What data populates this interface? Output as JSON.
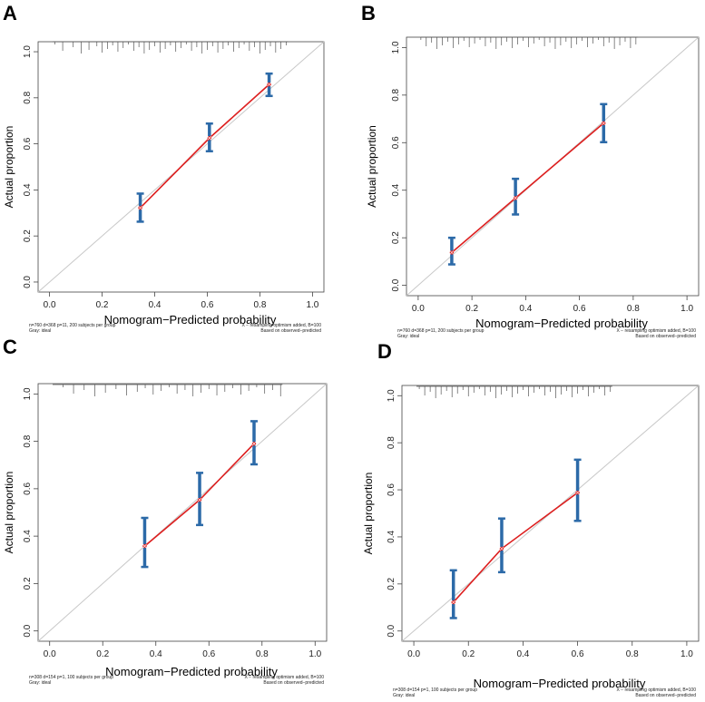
{
  "figure": {
    "colors": {
      "ideal": "#c8c8c8",
      "apparent": "#dd1f1f",
      "bias_corrected": "#dd1f1f",
      "errorbar": "#2c6aa8",
      "point": "#dd1f1f",
      "axis": "#444444",
      "text": "#222222",
      "rug": "#555555"
    }
  },
  "chart_data": [
    {
      "panel": "A",
      "type": "line",
      "title": "",
      "xlabel": "Nomogram−Predicted probability",
      "ylabel": "Actual proportion",
      "xlim": [
        0,
        1
      ],
      "ylim": [
        0,
        1
      ],
      "x_ticks": [
        "0.0",
        "0.2",
        "0.4",
        "0.6",
        "0.8",
        "1.0"
      ],
      "y_ticks": [
        "0.0",
        "0.2",
        "0.4",
        "0.6",
        "0.8",
        "1.0"
      ],
      "footnote_left": [
        "n=760 d=368 p=11, 200 subjects per group",
        "Gray: ideal"
      ],
      "footnote_right": [
        "X − resampling optimism added, B=100",
        "Based on observed−predicted"
      ],
      "series": [
        {
          "name": "ideal",
          "x": [
            0,
            1
          ],
          "y": [
            0,
            1
          ]
        },
        {
          "name": "calibration",
          "x": [
            0.345,
            0.608,
            0.835
          ],
          "y": [
            0.322,
            0.625,
            0.858
          ],
          "lower": [
            0.262,
            0.568,
            0.808
          ],
          "upper": [
            0.384,
            0.688,
            0.905
          ]
        }
      ],
      "rug": [
        0.02,
        0.05,
        0.09,
        0.12,
        0.15,
        0.18,
        0.2,
        0.22,
        0.24,
        0.26,
        0.28,
        0.3,
        0.32,
        0.34,
        0.36,
        0.38,
        0.4,
        0.42,
        0.44,
        0.46,
        0.48,
        0.5,
        0.52,
        0.54,
        0.56,
        0.58,
        0.6,
        0.62,
        0.64,
        0.66,
        0.68,
        0.7,
        0.72,
        0.74,
        0.76,
        0.78,
        0.8,
        0.82,
        0.84,
        0.86,
        0.88,
        0.9
      ]
    },
    {
      "panel": "B",
      "type": "line",
      "title": "",
      "xlabel": "Nomogram−Predicted probability",
      "ylabel": "Actual proportion",
      "xlim": [
        0,
        1
      ],
      "ylim": [
        0,
        1
      ],
      "x_ticks": [
        "0.0",
        "0.2",
        "0.4",
        "0.6",
        "0.8",
        "1.0"
      ],
      "y_ticks": [
        "0.0",
        "0.2",
        "0.4",
        "0.6",
        "0.8",
        "1.0"
      ],
      "footnote_left": [
        "n=760 d=368 p=11, 200 subjects per group",
        "Gray: ideal"
      ],
      "footnote_right": [
        "X − resampling optimism added, B=100",
        "Based on observed−predicted"
      ],
      "series": [
        {
          "name": "ideal",
          "x": [
            0,
            1
          ],
          "y": [
            0,
            1
          ]
        },
        {
          "name": "calibration",
          "x": [
            0.125,
            0.362,
            0.69
          ],
          "y": [
            0.138,
            0.367,
            0.682
          ],
          "lower": [
            0.088,
            0.298,
            0.602
          ],
          "upper": [
            0.2,
            0.448,
            0.762
          ]
        }
      ],
      "rug": [
        0.01,
        0.03,
        0.05,
        0.07,
        0.09,
        0.11,
        0.13,
        0.15,
        0.17,
        0.19,
        0.21,
        0.23,
        0.25,
        0.27,
        0.29,
        0.31,
        0.33,
        0.35,
        0.37,
        0.39,
        0.41,
        0.43,
        0.45,
        0.47,
        0.49,
        0.51,
        0.53,
        0.55,
        0.57,
        0.59,
        0.61,
        0.63,
        0.65,
        0.67,
        0.69,
        0.71,
        0.73,
        0.75,
        0.77,
        0.79,
        0.81
      ]
    },
    {
      "panel": "C",
      "type": "line",
      "title": "",
      "xlabel": "Nomogram−Predicted probability",
      "ylabel": "Actual proportion",
      "xlim": [
        0,
        1
      ],
      "ylim": [
        0,
        1
      ],
      "x_ticks": [
        "0.0",
        "0.2",
        "0.4",
        "0.6",
        "0.8",
        "1.0"
      ],
      "y_ticks": [
        "0.0",
        "0.2",
        "0.4",
        "0.6",
        "0.8",
        "1.0"
      ],
      "footnote_left": [
        "n=308 d=154 p=1, 100 subjects per group",
        "Gray: ideal"
      ],
      "footnote_right": [
        "X − resampling optimism added, B=100",
        "Based on observed−predicted"
      ],
      "series": [
        {
          "name": "ideal",
          "x": [
            0,
            1
          ],
          "y": [
            0,
            1
          ]
        },
        {
          "name": "calibration",
          "x": [
            0.358,
            0.565,
            0.77
          ],
          "y": [
            0.358,
            0.553,
            0.79
          ],
          "lower": [
            0.27,
            0.447,
            0.703
          ],
          "upper": [
            0.477,
            0.667,
            0.885
          ]
        }
      ],
      "rug": [
        0.05,
        0.09,
        0.13,
        0.17,
        0.21,
        0.25,
        0.29,
        0.33,
        0.36,
        0.39,
        0.42,
        0.45,
        0.48,
        0.51,
        0.54,
        0.57,
        0.6,
        0.63,
        0.66,
        0.69,
        0.72,
        0.75,
        0.78,
        0.81,
        0.84,
        0.87
      ]
    },
    {
      "panel": "D",
      "type": "line",
      "title": "",
      "xlabel": "Nomogram−Predicted probability",
      "ylabel": "Actual proportion",
      "xlim": [
        0,
        1
      ],
      "ylim": [
        0,
        1
      ],
      "x_ticks": [
        "0.0",
        "0.2",
        "0.4",
        "0.6",
        "0.8",
        "1.0"
      ],
      "y_ticks": [
        "0.0",
        "0.2",
        "0.4",
        "0.6",
        "0.8",
        "1.0"
      ],
      "footnote_left": [
        "n=308 d=154 p=1, 100 subjects per group",
        "Gray: ideal"
      ],
      "footnote_right": [
        "X − resampling optimism added, B=100",
        "Based on observed−predicted"
      ],
      "series": [
        {
          "name": "ideal",
          "x": [
            0,
            1
          ],
          "y": [
            0,
            1
          ]
        },
        {
          "name": "calibration",
          "x": [
            0.145,
            0.322,
            0.6
          ],
          "y": [
            0.122,
            0.35,
            0.588
          ],
          "lower": [
            0.055,
            0.25,
            0.468
          ],
          "upper": [
            0.258,
            0.478,
            0.728
          ]
        }
      ],
      "rug": [
        0.02,
        0.04,
        0.06,
        0.08,
        0.1,
        0.12,
        0.14,
        0.16,
        0.18,
        0.2,
        0.22,
        0.24,
        0.26,
        0.28,
        0.3,
        0.32,
        0.34,
        0.36,
        0.38,
        0.4,
        0.42,
        0.44,
        0.46,
        0.48,
        0.5,
        0.52,
        0.54,
        0.56,
        0.58,
        0.6,
        0.62,
        0.64,
        0.66,
        0.68,
        0.7,
        0.72
      ]
    }
  ]
}
